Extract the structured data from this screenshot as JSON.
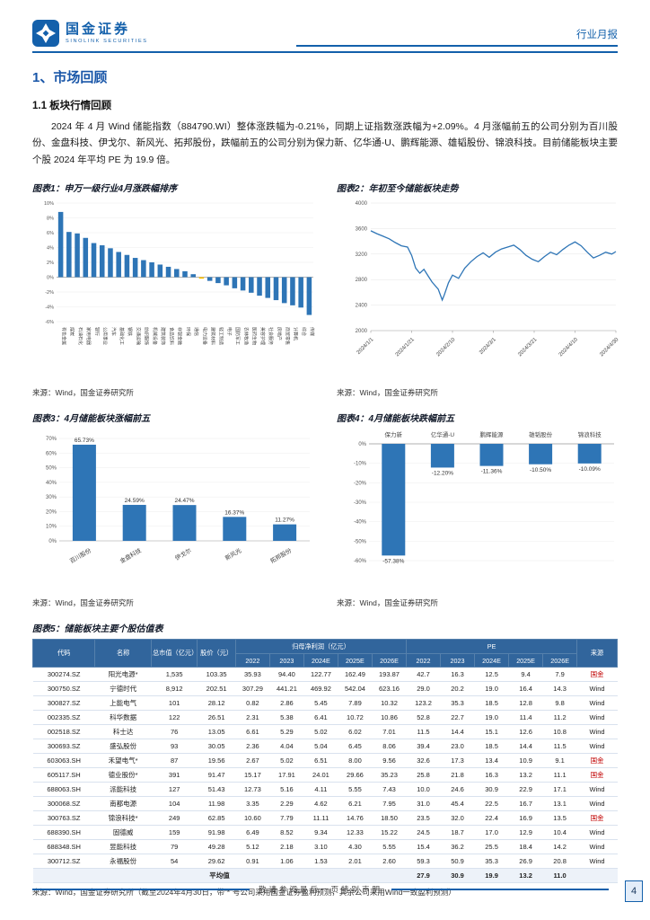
{
  "page": {
    "brand": {
      "cn": "国金证券",
      "en": "SINOLINK SECURITIES"
    },
    "doc_type": "行业月报",
    "section_title": "1、市场回顾",
    "subsection_title": "1.1 板块行情回顾",
    "paragraph": "2024 年 4 月 Wind 储能指数（884790.WI）整体涨跌幅为-0.21%，同期上证指数涨跌幅为+2.09%。4 月涨幅前五的公司分别为百川股份、金盘科技、伊戈尔、新风光、拓邦股份，跌幅前五的公司分别为保力新、亿华通-U、鹏辉能源、雄韬股份、锦浪科技。目前储能板块主要个股 2024 年平均 PE 为 19.9 倍。",
    "footer": {
      "disclaimer": "敬请参阅最后一页特别声明",
      "page_number": "4"
    }
  },
  "figures": {
    "fig1": {
      "caption": "图表1：申万一级行业4月涨跌幅排序",
      "source": "来源：Wind，国金证券研究所"
    },
    "fig2": {
      "caption": "图表2：年初至今储能板块走势",
      "source": "来源：Wind，国金证券研究所"
    },
    "fig3": {
      "caption": "图表3：4月储能板块涨幅前五",
      "source": "来源：Wind，国金证券研究所"
    },
    "fig4": {
      "caption": "图表4：4月储能板块跌幅前五",
      "source": "来源：Wind，国金证券研究所"
    },
    "fig5": {
      "caption": "图表5：储能板块主要个股估值表",
      "source": "来源：Wind，国金证券研究所（截至2024年4月30日，带“*”号公司采用国金证券盈利预测，其余公司采用Wind一致盈利预测）"
    }
  },
  "chart_data": [
    {
      "id": "fig1",
      "type": "bar",
      "title": "申万一级行业4月涨跌幅排序",
      "categories": [
        "有色金属",
        "煤炭",
        "石油石化",
        "家用电器",
        "银行",
        "公用事业",
        "汽车",
        "基础化工",
        "钢铁",
        "交通运输",
        "纺织服饰",
        "机械设备",
        "建筑装饰",
        "食品饮料",
        "非银金融",
        "环保",
        "通信",
        "电力设备",
        "建筑材料",
        "轻工制造",
        "电子",
        "国防军工",
        "农林牧渔",
        "医药生物",
        "美容护理",
        "社会服务",
        "房地产",
        "商贸零售",
        "计算机",
        "综合",
        "传媒"
      ],
      "values": [
        8.8,
        6.1,
        5.9,
        5.3,
        4.6,
        4.3,
        3.9,
        3.4,
        3.0,
        2.6,
        2.3,
        2.0,
        1.7,
        1.4,
        1.1,
        0.8,
        0.4,
        -0.2,
        -0.5,
        -0.8,
        -1.1,
        -1.5,
        -1.8,
        -2.1,
        -2.5,
        -2.8,
        -3.1,
        -3.5,
        -3.8,
        -4.1,
        -5.1
      ],
      "highlight_index": 17,
      "highlight_color": "#FFC000",
      "bar_color": "#2E75B6",
      "ylim": [
        -6,
        10
      ],
      "ytick_step": 2,
      "yunit": "%"
    },
    {
      "id": "fig2",
      "type": "line",
      "title": "年初至今储能板块走势",
      "line_color": "#2E75B6",
      "ylim": [
        2000,
        4000
      ],
      "ytick_step": 400,
      "xmax": 120,
      "x_ticks": [
        {
          "d": 0,
          "label": "2024/1/1"
        },
        {
          "d": 20,
          "label": "2024/1/21"
        },
        {
          "d": 40,
          "label": "2024/2/10"
        },
        {
          "d": 60,
          "label": "2024/3/1"
        },
        {
          "d": 80,
          "label": "2024/3/21"
        },
        {
          "d": 100,
          "label": "2024/4/10"
        },
        {
          "d": 120,
          "label": "2024/4/30"
        }
      ],
      "points": [
        [
          0,
          3565
        ],
        [
          3,
          3520
        ],
        [
          6,
          3480
        ],
        [
          9,
          3440
        ],
        [
          12,
          3380
        ],
        [
          15,
          3330
        ],
        [
          18,
          3310
        ],
        [
          20,
          3180
        ],
        [
          22,
          2980
        ],
        [
          24,
          2900
        ],
        [
          26,
          2960
        ],
        [
          28,
          2860
        ],
        [
          30,
          2760
        ],
        [
          33,
          2650
        ],
        [
          35,
          2480
        ],
        [
          36,
          2560
        ],
        [
          38,
          2750
        ],
        [
          40,
          2870
        ],
        [
          43,
          2820
        ],
        [
          46,
          2980
        ],
        [
          49,
          3080
        ],
        [
          52,
          3160
        ],
        [
          55,
          3220
        ],
        [
          58,
          3150
        ],
        [
          61,
          3230
        ],
        [
          64,
          3280
        ],
        [
          67,
          3310
        ],
        [
          70,
          3340
        ],
        [
          73,
          3270
        ],
        [
          76,
          3180
        ],
        [
          79,
          3120
        ],
        [
          82,
          3080
        ],
        [
          85,
          3160
        ],
        [
          88,
          3230
        ],
        [
          91,
          3190
        ],
        [
          94,
          3270
        ],
        [
          97,
          3340
        ],
        [
          100,
          3390
        ],
        [
          103,
          3330
        ],
        [
          106,
          3230
        ],
        [
          109,
          3140
        ],
        [
          112,
          3180
        ],
        [
          115,
          3230
        ],
        [
          118,
          3200
        ],
        [
          120,
          3240
        ]
      ]
    },
    {
      "id": "fig3",
      "type": "bar",
      "title": "4月储能板块涨幅前五",
      "categories": [
        "百川股份",
        "金盘科技",
        "伊戈尔",
        "新风光",
        "拓邦股份"
      ],
      "values": [
        65.73,
        24.59,
        24.47,
        16.37,
        11.27
      ],
      "data_labels": [
        "65.73%",
        "24.59%",
        "24.47%",
        "16.37%",
        "11.27%"
      ],
      "bar_color": "#2E75B6",
      "ylim": [
        0,
        70
      ],
      "ytick_step": 10
    },
    {
      "id": "fig4",
      "type": "bar",
      "title": "4月储能板块跌幅前五",
      "categories": [
        "保力新",
        "亿华通-U",
        "鹏辉能源",
        "雄韬股份",
        "锦浪科技"
      ],
      "values": [
        -57.38,
        -12.2,
        -11.36,
        -10.5,
        -10.09
      ],
      "data_labels": [
        "-57.38%",
        "-12.20%",
        "-11.36%",
        "-10.50%",
        "-10.09%"
      ],
      "bar_color": "#2E75B6",
      "ylim": [
        -60,
        0
      ],
      "ytick_step": 10
    }
  ],
  "valuation_table": {
    "static_headers": [
      "代码",
      "名称",
      "总市值（亿元）",
      "股价（元）"
    ],
    "group_headers": [
      "归母净利润（亿元）",
      "PE"
    ],
    "year_headers": [
      "2022",
      "2023",
      "2024E",
      "2025E",
      "2026E"
    ],
    "source_header": "来源",
    "rows": [
      [
        "300274.SZ",
        "阳光电源*",
        "1,535",
        "103.35",
        "35.93",
        "94.40",
        "122.77",
        "162.49",
        "193.87",
        "42.7",
        "16.3",
        "12.5",
        "9.4",
        "7.9",
        "国金"
      ],
      [
        "300750.SZ",
        "宁德时代",
        "8,912",
        "202.51",
        "307.29",
        "441.21",
        "469.92",
        "542.04",
        "623.16",
        "29.0",
        "20.2",
        "19.0",
        "16.4",
        "14.3",
        "Wind"
      ],
      [
        "300827.SZ",
        "上能电气",
        "101",
        "28.12",
        "0.82",
        "2.86",
        "5.45",
        "7.89",
        "10.32",
        "123.2",
        "35.3",
        "18.5",
        "12.8",
        "9.8",
        "Wind"
      ],
      [
        "002335.SZ",
        "科华数据",
        "122",
        "26.51",
        "2.31",
        "5.38",
        "6.41",
        "10.72",
        "10.86",
        "52.8",
        "22.7",
        "19.0",
        "11.4",
        "11.2",
        "Wind"
      ],
      [
        "002518.SZ",
        "科士达",
        "76",
        "13.05",
        "6.61",
        "5.29",
        "5.02",
        "6.02",
        "7.01",
        "11.5",
        "14.4",
        "15.1",
        "12.6",
        "10.8",
        "Wind"
      ],
      [
        "300693.SZ",
        "盛弘股份",
        "93",
        "30.05",
        "2.36",
        "4.04",
        "5.04",
        "6.45",
        "8.06",
        "39.4",
        "23.0",
        "18.5",
        "14.4",
        "11.5",
        "Wind"
      ],
      [
        "603063.SH",
        "禾望电气*",
        "87",
        "19.56",
        "2.67",
        "5.02",
        "6.51",
        "8.00",
        "9.56",
        "32.6",
        "17.3",
        "13.4",
        "10.9",
        "9.1",
        "国金"
      ],
      [
        "605117.SH",
        "德业股份*",
        "391",
        "91.47",
        "15.17",
        "17.91",
        "24.01",
        "29.66",
        "35.23",
        "25.8",
        "21.8",
        "16.3",
        "13.2",
        "11.1",
        "国金"
      ],
      [
        "688063.SH",
        "派能科技",
        "127",
        "51.43",
        "12.73",
        "5.16",
        "4.11",
        "5.55",
        "7.43",
        "10.0",
        "24.6",
        "30.9",
        "22.9",
        "17.1",
        "Wind"
      ],
      [
        "300068.SZ",
        "南都电源",
        "104",
        "11.98",
        "3.35",
        "2.29",
        "4.62",
        "6.21",
        "7.95",
        "31.0",
        "45.4",
        "22.5",
        "16.7",
        "13.1",
        "Wind"
      ],
      [
        "300763.SZ",
        "锦浪科技*",
        "249",
        "62.85",
        "10.60",
        "7.79",
        "11.11",
        "14.76",
        "18.50",
        "23.5",
        "32.0",
        "22.4",
        "16.9",
        "13.5",
        "国金"
      ],
      [
        "688390.SH",
        "固德威",
        "159",
        "91.98",
        "6.49",
        "8.52",
        "9.34",
        "12.33",
        "15.22",
        "24.5",
        "18.7",
        "17.0",
        "12.9",
        "10.4",
        "Wind"
      ],
      [
        "688348.SH",
        "昱能科技",
        "79",
        "49.28",
        "5.12",
        "2.18",
        "3.10",
        "4.30",
        "5.55",
        "15.4",
        "36.2",
        "25.5",
        "18.4",
        "14.2",
        "Wind"
      ],
      [
        "300712.SZ",
        "永福股份",
        "54",
        "29.62",
        "0.91",
        "1.06",
        "1.53",
        "2.01",
        "2.60",
        "59.3",
        "50.9",
        "35.3",
        "26.9",
        "20.8",
        "Wind"
      ]
    ],
    "average_label": "平均值",
    "average_pe": [
      "27.9",
      "30.9",
      "19.9",
      "13.2",
      "11.0"
    ]
  }
}
